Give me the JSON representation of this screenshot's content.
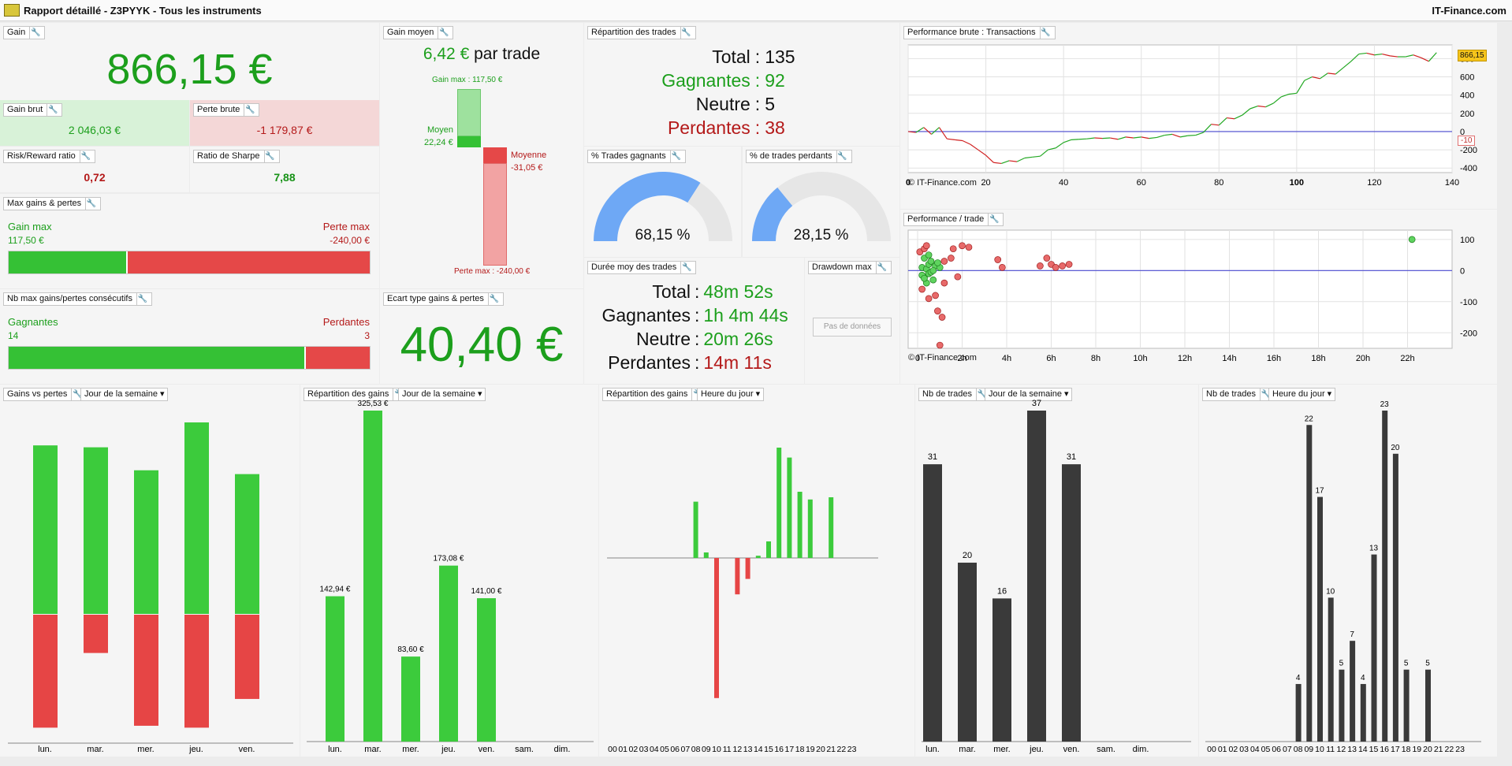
{
  "header": {
    "title": "Rapport détaillé - Z3PYYK - Tous les instruments",
    "brand": "IT-Finance.com"
  },
  "gain": {
    "label": "Gain",
    "value": "866,15 €"
  },
  "gain_brut": {
    "label": "Gain brut",
    "value": "2 046,03 €"
  },
  "perte_brute": {
    "label": "Perte brute",
    "value": "-1 179,87 €"
  },
  "risk_reward": {
    "label": "Risk/Reward ratio",
    "value": "0,72"
  },
  "sharpe": {
    "label": "Ratio de Sharpe",
    "value": "7,88"
  },
  "max_gp": {
    "label": "Max gains & pertes",
    "gain_label": "Gain max",
    "gain_value": "117,50 €",
    "loss_label": "Perte max",
    "loss_value": "-240,00 €",
    "gain_fraction": 0.329
  },
  "consec": {
    "label": "Nb max gains/pertes consécutifs",
    "win_label": "Gagnantes",
    "win_value": "14",
    "loss_label": "Perdantes",
    "loss_value": "3",
    "win_fraction": 0.824
  },
  "gain_moyen": {
    "label": "Gain moyen",
    "value": "6,42 €",
    "suffix": " par trade",
    "gain_max": "Gain max : 117,50 €",
    "moyen_label": "Moyen",
    "moyen_value": "22,24 €",
    "moyenne_label": "Moyenne",
    "moyenne_value": "-31,05 €",
    "perte_max": "Perte max : -240,00 €"
  },
  "ecart": {
    "label": "Ecart type gains & pertes",
    "value": "40,40 €"
  },
  "repartition": {
    "label": "Répartition des trades",
    "total_label": "Total",
    "total": "135",
    "win_label": "Gagnantes",
    "win": "92",
    "neutral_label": "Neutre",
    "neutral": "5",
    "loss_label": "Perdantes",
    "loss": "38"
  },
  "pct_win": {
    "label": "% Trades gagnants",
    "value": "68,15 %",
    "fraction": 0.6815
  },
  "pct_loss": {
    "label": "% de trades perdants",
    "value": "28,15 %",
    "fraction": 0.2815
  },
  "duree": {
    "label": "Durée moy des trades",
    "total_label": "Total",
    "total": "48m 52s",
    "win_label": "Gagnantes",
    "win": "1h 4m 44s",
    "neutral_label": "Neutre",
    "neutral": "20m 26s",
    "loss_label": "Perdantes",
    "loss": "14m 11s"
  },
  "drawdown": {
    "label": "Drawdown max",
    "button": "Pas de données"
  },
  "perf_brute": {
    "label": "Performance brute : Transactions",
    "copyright": "© IT-Finance.com",
    "last_value": "866,15",
    "zero_value": "-10"
  },
  "perf_trade": {
    "label": "Performance / trade",
    "copyright": "© IT-Finance.com"
  },
  "charts_labels": {
    "gvp": {
      "label": "Gains vs pertes",
      "selector": "Jour de la semaine"
    },
    "rep_day": {
      "label": "Répartition des gains",
      "selector": "Jour de la semaine"
    },
    "rep_hour": {
      "label": "Répartition des gains",
      "selector": "Heure du jour"
    },
    "nb_day": {
      "label": "Nb de trades",
      "selector": "Jour de la semaine"
    },
    "nb_hour": {
      "label": "Nb de trades",
      "selector": "Heure du jour"
    }
  },
  "chart_data": [
    {
      "type": "line",
      "title": "Performance brute : Transactions",
      "x_ticks": [
        "0",
        "20",
        "40",
        "60",
        "80",
        "100",
        "120",
        "140"
      ],
      "y_ticks": [
        "800",
        "600",
        "400",
        "200",
        "0",
        "-200",
        "-400"
      ],
      "xlim": [
        0,
        140
      ],
      "ylim": [
        -450,
        950
      ],
      "points": [
        [
          0,
          0
        ],
        [
          2,
          -10
        ],
        [
          4,
          45
        ],
        [
          6,
          -30
        ],
        [
          8,
          45
        ],
        [
          10,
          -80
        ],
        [
          12,
          -90
        ],
        [
          14,
          -100
        ],
        [
          16,
          -140
        ],
        [
          18,
          -200
        ],
        [
          20,
          -260
        ],
        [
          22,
          -340
        ],
        [
          24,
          -350
        ],
        [
          26,
          -320
        ],
        [
          28,
          -330
        ],
        [
          30,
          -290
        ],
        [
          32,
          -280
        ],
        [
          34,
          -270
        ],
        [
          36,
          -200
        ],
        [
          38,
          -180
        ],
        [
          40,
          -120
        ],
        [
          42,
          -90
        ],
        [
          44,
          -85
        ],
        [
          46,
          -80
        ],
        [
          48,
          -70
        ],
        [
          50,
          -75
        ],
        [
          52,
          -70
        ],
        [
          54,
          -85
        ],
        [
          56,
          -60
        ],
        [
          58,
          -70
        ],
        [
          60,
          -60
        ],
        [
          62,
          -75
        ],
        [
          64,
          -65
        ],
        [
          66,
          -40
        ],
        [
          68,
          -30
        ],
        [
          70,
          -60
        ],
        [
          72,
          -45
        ],
        [
          74,
          -40
        ],
        [
          76,
          -10
        ],
        [
          78,
          80
        ],
        [
          80,
          70
        ],
        [
          82,
          150
        ],
        [
          84,
          140
        ],
        [
          86,
          180
        ],
        [
          88,
          250
        ],
        [
          90,
          280
        ],
        [
          92,
          270
        ],
        [
          94,
          310
        ],
        [
          96,
          380
        ],
        [
          98,
          410
        ],
        [
          100,
          420
        ],
        [
          102,
          560
        ],
        [
          104,
          600
        ],
        [
          106,
          580
        ],
        [
          108,
          640
        ],
        [
          110,
          630
        ],
        [
          112,
          700
        ],
        [
          114,
          770
        ],
        [
          116,
          850
        ],
        [
          118,
          860
        ],
        [
          120,
          840
        ],
        [
          122,
          850
        ],
        [
          124,
          830
        ],
        [
          126,
          820
        ],
        [
          128,
          820
        ],
        [
          130,
          840
        ],
        [
          132,
          810
        ],
        [
          134,
          770
        ],
        [
          136,
          866
        ]
      ]
    },
    {
      "type": "scatter",
      "title": "Performance / trade",
      "x_ticks": [
        "0",
        "2h",
        "4h",
        "6h",
        "8h",
        "10h",
        "12h",
        "14h",
        "16h",
        "18h",
        "20h",
        "22h"
      ],
      "y_ticks": [
        "100",
        "0",
        "-100",
        "-200"
      ],
      "xlim": [
        0,
        24
      ],
      "ylim": [
        -250,
        130
      ],
      "wins": [
        [
          0.2,
          10
        ],
        [
          0.3,
          -20
        ],
        [
          0.4,
          5
        ],
        [
          0.5,
          -10
        ],
        [
          0.5,
          20
        ],
        [
          0.6,
          30
        ],
        [
          0.3,
          40
        ],
        [
          0.7,
          -30
        ],
        [
          0.8,
          15
        ],
        [
          0.4,
          -40
        ],
        [
          0.6,
          -5
        ],
        [
          1.0,
          10
        ],
        [
          0.9,
          25
        ],
        [
          0.2,
          -15
        ],
        [
          0.5,
          50
        ],
        [
          0.3,
          -25
        ],
        [
          0.7,
          0
        ],
        [
          22.2,
          100
        ]
      ],
      "losses": [
        [
          0.1,
          60
        ],
        [
          0.3,
          70
        ],
        [
          0.4,
          80
        ],
        [
          0.2,
          -60
        ],
        [
          0.5,
          -90
        ],
        [
          0.9,
          -130
        ],
        [
          1.1,
          -150
        ],
        [
          1.0,
          -240
        ],
        [
          1.2,
          30
        ],
        [
          1.5,
          40
        ],
        [
          1.8,
          -20
        ],
        [
          2.0,
          80
        ],
        [
          2.3,
          75
        ],
        [
          3.6,
          35
        ],
        [
          3.8,
          10
        ],
        [
          5.5,
          15
        ],
        [
          5.8,
          40
        ],
        [
          6.0,
          20
        ],
        [
          6.2,
          10
        ],
        [
          6.5,
          15
        ],
        [
          6.8,
          20
        ],
        [
          1.6,
          70
        ],
        [
          1.2,
          -40
        ],
        [
          0.8,
          -80
        ]
      ]
    },
    {
      "type": "bar",
      "title": "Gains vs pertes",
      "categories": [
        "lun.",
        "mar.",
        "mer.",
        "jeu.",
        "ven."
      ],
      "series": [
        {
          "values": [
            0.88,
            0.87,
            0.75,
            1.0,
            0.73
          ]
        },
        {
          "values": [
            -0.59,
            -0.2,
            -0.58,
            -0.59,
            -0.44
          ]
        }
      ]
    },
    {
      "type": "bar",
      "title": "Répartition des gains",
      "categories": [
        "lun.",
        "mar.",
        "mer.",
        "jeu.",
        "ven.",
        "sam.",
        "dim."
      ],
      "values": [
        142.94,
        325.53,
        83.6,
        173.08,
        141.0,
        0,
        0
      ],
      "labels": [
        "142,94 €",
        "325,53 €",
        "83,60 €",
        "173,08 €",
        "141,00 €",
        "",
        ""
      ]
    },
    {
      "type": "bar",
      "title": "Répartition des gains",
      "categories": [
        "00",
        "01",
        "02",
        "03",
        "04",
        "05",
        "06",
        "07",
        "08",
        "09",
        "10",
        "11",
        "12",
        "13",
        "14",
        "15",
        "16",
        "17",
        "18",
        "19",
        "20",
        "21",
        "22",
        "23"
      ],
      "values": [
        0,
        0,
        0,
        0,
        0,
        0,
        0,
        0,
        0.51,
        0.05,
        -1.27,
        0,
        -0.33,
        -0.19,
        0.02,
        0.15,
        1.0,
        0.91,
        0.6,
        0.53,
        0,
        0.55,
        0,
        0
      ]
    },
    {
      "type": "bar",
      "title": "Nb de trades",
      "categories": [
        "lun.",
        "mar.",
        "mer.",
        "jeu.",
        "ven.",
        "sam.",
        "dim."
      ],
      "values": [
        31,
        20,
        16,
        37,
        31,
        0,
        0
      ]
    },
    {
      "type": "bar",
      "title": "Nb de trades",
      "categories": [
        "00",
        "01",
        "02",
        "03",
        "04",
        "05",
        "06",
        "07",
        "08",
        "09",
        "10",
        "11",
        "12",
        "13",
        "14",
        "15",
        "16",
        "17",
        "18",
        "19",
        "20",
        "21",
        "22",
        "23"
      ],
      "values": [
        0,
        0,
        0,
        0,
        0,
        0,
        0,
        0,
        4,
        22,
        17,
        10,
        5,
        7,
        4,
        13,
        23,
        20,
        5,
        0,
        5,
        0,
        0,
        0
      ]
    }
  ]
}
